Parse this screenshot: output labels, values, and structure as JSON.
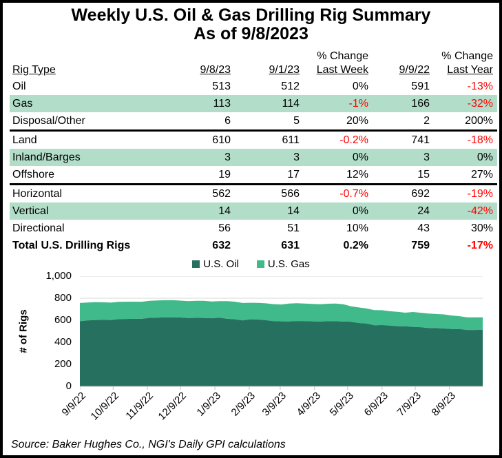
{
  "header": {
    "title_line1": "Weekly U.S. Oil & Gas Drilling Rig Summary",
    "title_line2": "As of 9/8/2023"
  },
  "table": {
    "columns": [
      {
        "top": "",
        "label": "Rig Type"
      },
      {
        "top": "",
        "label": "9/8/23"
      },
      {
        "top": "",
        "label": "9/1/23"
      },
      {
        "top": "% Change",
        "label": "Last Week"
      },
      {
        "top": "",
        "label": "9/9/22"
      },
      {
        "top": "% Change",
        "label": "Last Year"
      }
    ],
    "rows": [
      {
        "rig_type": "Oil",
        "current": "513",
        "prior_week": "512",
        "chg_week": "0%",
        "prior_year": "591",
        "chg_year": "-13%",
        "highlight": false,
        "divider_before": false,
        "bold": false
      },
      {
        "rig_type": "Gas",
        "current": "113",
        "prior_week": "114",
        "chg_week": "-1%",
        "prior_year": "166",
        "chg_year": "-32%",
        "highlight": true,
        "divider_before": false,
        "bold": false
      },
      {
        "rig_type": "Disposal/Other",
        "current": "6",
        "prior_week": "5",
        "chg_week": "20%",
        "prior_year": "2",
        "chg_year": "200%",
        "highlight": false,
        "divider_before": false,
        "bold": false
      },
      {
        "rig_type": "Land",
        "current": "610",
        "prior_week": "611",
        "chg_week": "-0.2%",
        "prior_year": "741",
        "chg_year": "-18%",
        "highlight": false,
        "divider_before": true,
        "bold": false
      },
      {
        "rig_type": "Inland/Barges",
        "current": "3",
        "prior_week": "3",
        "chg_week": "0%",
        "prior_year": "3",
        "chg_year": "0%",
        "highlight": true,
        "divider_before": false,
        "bold": false
      },
      {
        "rig_type": "Offshore",
        "current": "19",
        "prior_week": "17",
        "chg_week": "12%",
        "prior_year": "15",
        "chg_year": "27%",
        "highlight": false,
        "divider_before": false,
        "bold": false
      },
      {
        "rig_type": "Horizontal",
        "current": "562",
        "prior_week": "566",
        "chg_week": "-0.7%",
        "prior_year": "692",
        "chg_year": "-19%",
        "highlight": false,
        "divider_before": true,
        "bold": false
      },
      {
        "rig_type": "Vertical",
        "current": "14",
        "prior_week": "14",
        "chg_week": "0%",
        "prior_year": "24",
        "chg_year": "-42%",
        "highlight": true,
        "divider_before": false,
        "bold": false
      },
      {
        "rig_type": "Directional",
        "current": "56",
        "prior_week": "51",
        "chg_week": "10%",
        "prior_year": "43",
        "chg_year": "30%",
        "highlight": false,
        "divider_before": false,
        "bold": false
      },
      {
        "rig_type": "Total U.S. Drilling Rigs",
        "current": "632",
        "prior_week": "631",
        "chg_week": "0.2%",
        "prior_year": "759",
        "chg_year": "-17%",
        "highlight": false,
        "divider_before": false,
        "bold": true
      }
    ]
  },
  "chart_data": {
    "type": "area",
    "stacked": true,
    "title": "",
    "xlabel": "",
    "ylabel": "# of Rigs",
    "ylim": [
      0,
      1000
    ],
    "grid": true,
    "legend_position": "top",
    "weeks_total": 52,
    "yticks": [
      {
        "v": 0,
        "label": "0"
      },
      {
        "v": 200,
        "label": "200"
      },
      {
        "v": 400,
        "label": "400"
      },
      {
        "v": 600,
        "label": "600"
      },
      {
        "v": 800,
        "label": "800"
      },
      {
        "v": 1000,
        "label": "1,000"
      }
    ],
    "xticks": [
      {
        "label": "9/9/22",
        "week": 0
      },
      {
        "label": "10/9/22",
        "week": 4.29
      },
      {
        "label": "11/9/22",
        "week": 8.71
      },
      {
        "label": "12/9/22",
        "week": 13.0
      },
      {
        "label": "1/9/23",
        "week": 17.43
      },
      {
        "label": "2/9/23",
        "week": 21.86
      },
      {
        "label": "3/9/23",
        "week": 25.86
      },
      {
        "label": "4/9/23",
        "week": 30.29
      },
      {
        "label": "5/9/23",
        "week": 34.57
      },
      {
        "label": "6/9/23",
        "week": 39.0
      },
      {
        "label": "7/9/23",
        "week": 43.29
      },
      {
        "label": "8/9/23",
        "week": 47.71
      }
    ],
    "legend": [
      {
        "label": "U.S. Oil",
        "color": "#26705F"
      },
      {
        "label": "U.S. Gas",
        "color": "#41BA8B"
      }
    ],
    "series": [
      {
        "name": "U.S. Oil",
        "color": "#26705F",
        "values": [
          591,
          599,
          602,
          604,
          602,
          610,
          612,
          613,
          613,
          622,
          623,
          627,
          627,
          625,
          620,
          622,
          621,
          618,
          623,
          613,
          609,
          599,
          609,
          607,
          600,
          592,
          590,
          589,
          593,
          592,
          590,
          588,
          591,
          591,
          588,
          586,
          575,
          570,
          555,
          556,
          552,
          546,
          545,
          540,
          537,
          530,
          529,
          525,
          520,
          520,
          512,
          512,
          513
        ]
      },
      {
        "name": "U.S. Gas",
        "color": "#41BA8B",
        "values": [
          166,
          162,
          162,
          159,
          158,
          157,
          156,
          156,
          155,
          155,
          157,
          155,
          155,
          153,
          153,
          155,
          156,
          152,
          150,
          160,
          160,
          158,
          150,
          151,
          154,
          154,
          153,
          162,
          162,
          160,
          158,
          157,
          159,
          161,
          157,
          141,
          141,
          137,
          137,
          135,
          130,
          130,
          124,
          135,
          131,
          131,
          128,
          128,
          123,
          117,
          115,
          114,
          113
        ]
      }
    ],
    "colors": {
      "gridline": "#D9D9D9",
      "axis": "#BFBFBF"
    }
  },
  "footer": {
    "source": "Source: Baker Hughes Co., NGI's Daily GPI calculations"
  },
  "colors": {
    "highlight_row": "#B2DEC9",
    "negative": "#FF0000",
    "oil": "#26705F",
    "gas": "#41BA8B"
  }
}
